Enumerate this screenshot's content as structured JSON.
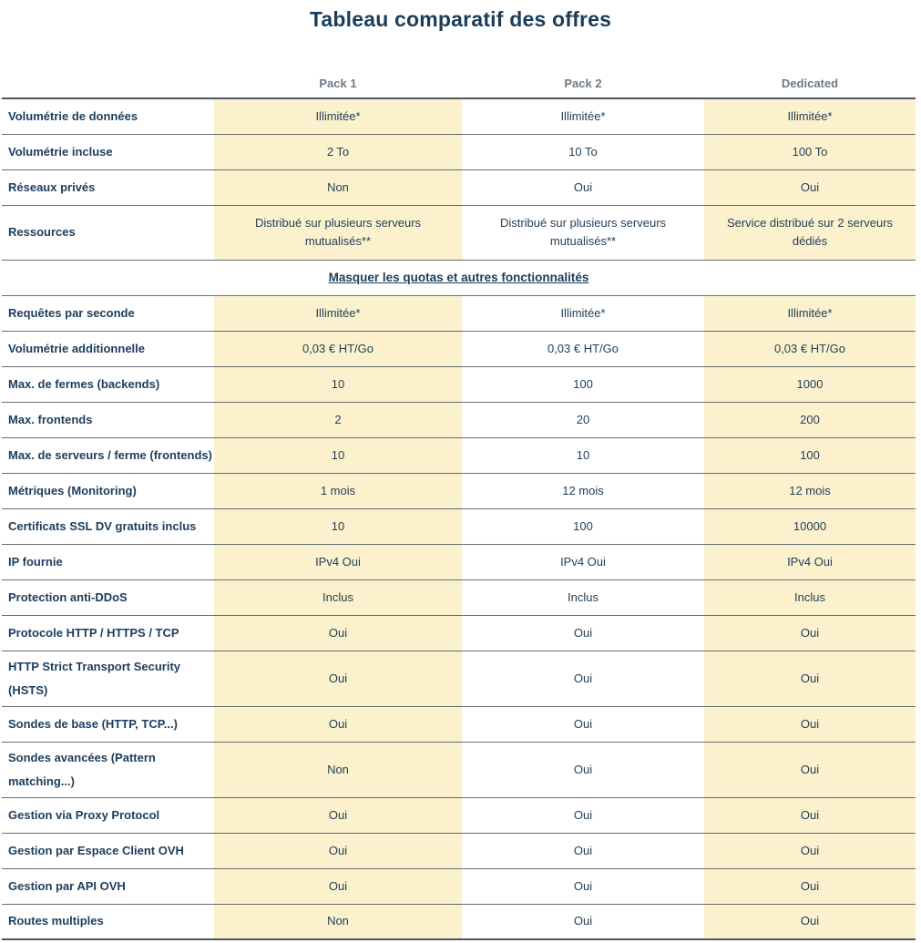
{
  "title": "Tableau comparatif des offres",
  "columns": [
    "Pack 1",
    "Pack 2",
    "Dedicated"
  ],
  "toggle_link": "Masquer les quotas et autres fonctionnalités",
  "rows": [
    {
      "label": "Volumétrie de données",
      "values": [
        "Illimitée*",
        "Illimitée*",
        "Illimitée*"
      ]
    },
    {
      "label": "Volumétrie incluse",
      "values": [
        "2 To",
        "10 To",
        "100 To"
      ]
    },
    {
      "label": "Réseaux privés",
      "values": [
        "Non",
        "Oui",
        "Oui"
      ]
    },
    {
      "label": "Ressources",
      "values": [
        "Distribué sur plusieurs serveurs mutualisés**",
        "Distribué sur plusieurs serveurs mutualisés**",
        "Service distribué sur 2 serveurs dédiés"
      ],
      "tall": true
    },
    {
      "type": "link"
    },
    {
      "label": "Requêtes par seconde",
      "values": [
        "Illimitée*",
        "Illimitée*",
        "Illimitée*"
      ]
    },
    {
      "label": "Volumétrie additionnelle",
      "values": [
        "0,03 € HT/Go",
        "0,03 € HT/Go",
        "0,03 € HT/Go"
      ]
    },
    {
      "label": "Max. de fermes (backends)",
      "values": [
        "10",
        "100",
        "1000"
      ]
    },
    {
      "label": "Max. frontends",
      "values": [
        "2",
        "20",
        "200"
      ]
    },
    {
      "label": "Max. de serveurs / ferme (frontends)",
      "values": [
        "10",
        "10",
        "100"
      ]
    },
    {
      "label": "Métriques (Monitoring)",
      "values": [
        "1 mois",
        "12 mois",
        "12 mois"
      ]
    },
    {
      "label": "Certificats SSL DV gratuits inclus",
      "values": [
        "10",
        "100",
        "10000"
      ]
    },
    {
      "label": "IP fournie",
      "values": [
        "IPv4 Oui",
        "IPv4 Oui",
        "IPv4 Oui"
      ]
    },
    {
      "label": "Protection anti-DDoS",
      "values": [
        "Inclus",
        "Inclus",
        "Inclus"
      ]
    },
    {
      "label": "Protocole HTTP / HTTPS / TCP",
      "values": [
        "Oui",
        "Oui",
        "Oui"
      ]
    },
    {
      "label": "HTTP Strict Transport Security\n(HSTS)",
      "values": [
        "Oui",
        "Oui",
        "Oui"
      ],
      "tall": true
    },
    {
      "label": "Sondes de base (HTTP, TCP...)",
      "values": [
        "Oui",
        "Oui",
        "Oui"
      ]
    },
    {
      "label": "Sondes avancées (Pattern\nmatching...)",
      "values": [
        "Non",
        "Oui",
        "Oui"
      ],
      "tall": true
    },
    {
      "label": "Gestion via Proxy Protocol",
      "values": [
        "Oui",
        "Oui",
        "Oui"
      ]
    },
    {
      "label": "Gestion par Espace Client OVH",
      "values": [
        "Oui",
        "Oui",
        "Oui"
      ]
    },
    {
      "label": "Gestion par API OVH",
      "values": [
        "Oui",
        "Oui",
        "Oui"
      ]
    },
    {
      "label": "Routes multiples",
      "values": [
        "Non",
        "Oui",
        "Oui"
      ]
    }
  ],
  "colors": {
    "highlight": "#fbf1cd",
    "heading": "#1b3d58",
    "label": "#1c3d5c",
    "value": "#25405a",
    "header_gray": "#6f7a85",
    "border": "#666e75",
    "border_strong": "#4e575e"
  }
}
